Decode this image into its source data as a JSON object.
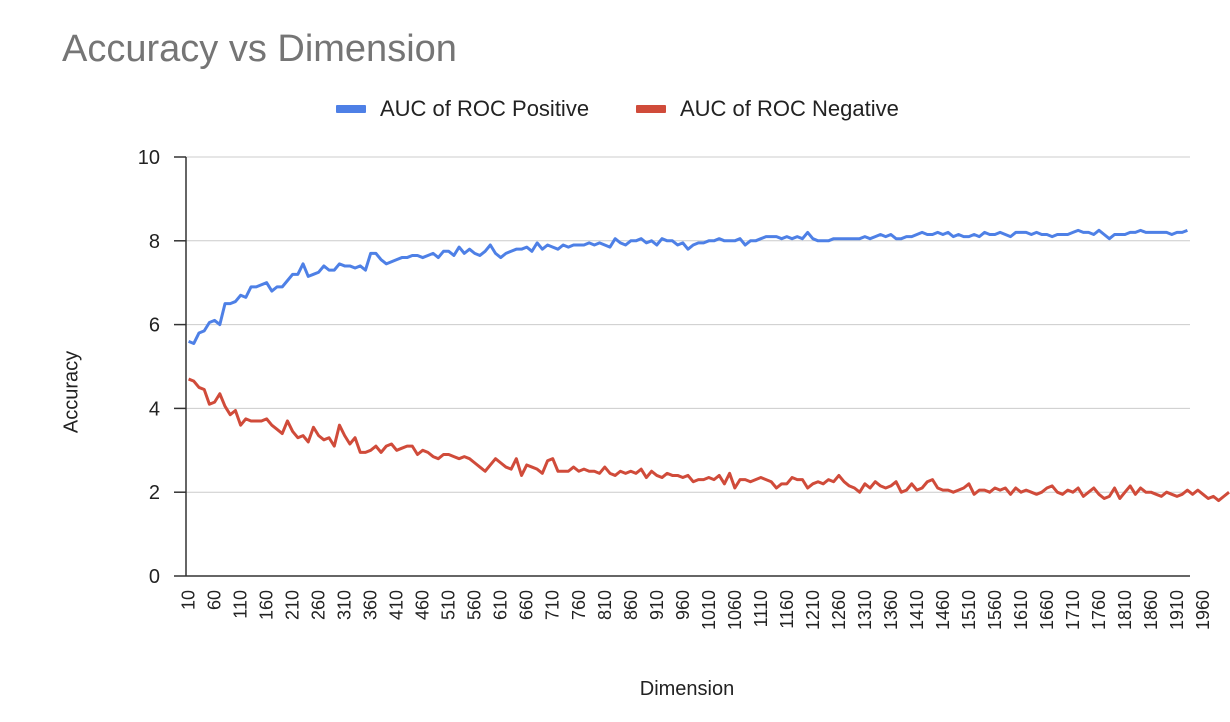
{
  "chart_data": {
    "type": "line",
    "title": "Accuracy vs Dimension",
    "xlabel": "Dimension",
    "ylabel": "Accuracy",
    "ylim": [
      0,
      10
    ],
    "yticks": [
      0,
      2,
      4,
      6,
      8,
      10
    ],
    "grid": true,
    "legend_position": "top",
    "x_start": 10,
    "x_step": 10,
    "x_tick_labels": [
      "10",
      "60",
      "110",
      "160",
      "210",
      "260",
      "310",
      "360",
      "410",
      "460",
      "510",
      "560",
      "610",
      "660",
      "710",
      "760",
      "810",
      "860",
      "910",
      "960",
      "1010",
      "1060",
      "1110",
      "1160",
      "1210",
      "1260",
      "1310",
      "1360",
      "1410",
      "1460",
      "1510",
      "1560",
      "1610",
      "1660",
      "1710",
      "1760",
      "1810",
      "1860",
      "1910",
      "1960"
    ],
    "series": [
      {
        "name": "AUC of ROC Positive",
        "color": "#4e80e6",
        "values": [
          5.6,
          5.55,
          5.8,
          5.85,
          6.05,
          6.1,
          6.0,
          6.5,
          6.5,
          6.55,
          6.7,
          6.65,
          6.9,
          6.9,
          6.95,
          7.0,
          6.8,
          6.9,
          6.9,
          7.05,
          7.2,
          7.2,
          7.45,
          7.15,
          7.2,
          7.25,
          7.4,
          7.3,
          7.3,
          7.45,
          7.4,
          7.4,
          7.35,
          7.4,
          7.3,
          7.7,
          7.7,
          7.55,
          7.45,
          7.5,
          7.55,
          7.6,
          7.6,
          7.65,
          7.65,
          7.6,
          7.65,
          7.7,
          7.6,
          7.75,
          7.75,
          7.65,
          7.85,
          7.7,
          7.8,
          7.7,
          7.65,
          7.75,
          7.9,
          7.7,
          7.6,
          7.7,
          7.75,
          7.8,
          7.8,
          7.85,
          7.75,
          7.95,
          7.8,
          7.9,
          7.85,
          7.8,
          7.9,
          7.85,
          7.9,
          7.9,
          7.9,
          7.95,
          7.9,
          7.95,
          7.9,
          7.85,
          8.05,
          7.95,
          7.9,
          8.0,
          8.0,
          8.05,
          7.95,
          8.0,
          7.9,
          8.05,
          8.0,
          8.0,
          7.9,
          7.95,
          7.8,
          7.9,
          7.95,
          7.95,
          8.0,
          8.0,
          8.05,
          8.0,
          8.0,
          8.0,
          8.05,
          7.9,
          8.0,
          8.0,
          8.05,
          8.1,
          8.1,
          8.1,
          8.05,
          8.1,
          8.05,
          8.1,
          8.05,
          8.2,
          8.05,
          8.0,
          8.0,
          8.0,
          8.05,
          8.05,
          8.05,
          8.05,
          8.05,
          8.05,
          8.1,
          8.05,
          8.1,
          8.15,
          8.1,
          8.15,
          8.05,
          8.05,
          8.1,
          8.1,
          8.15,
          8.2,
          8.15,
          8.15,
          8.2,
          8.15,
          8.2,
          8.1,
          8.15,
          8.1,
          8.1,
          8.15,
          8.1,
          8.2,
          8.15,
          8.15,
          8.2,
          8.15,
          8.1,
          8.2,
          8.2,
          8.2,
          8.15,
          8.2,
          8.15,
          8.15,
          8.1,
          8.15,
          8.15,
          8.15,
          8.2,
          8.25,
          8.2,
          8.2,
          8.15,
          8.25,
          8.15,
          8.05,
          8.15,
          8.15,
          8.15,
          8.2,
          8.2,
          8.25,
          8.2,
          8.2,
          8.2,
          8.2,
          8.2,
          8.15,
          8.2,
          8.2,
          8.25
        ]
      },
      {
        "name": "AUC of ROC Negative",
        "color": "#d04b3a",
        "values": [
          4.7,
          4.65,
          4.5,
          4.45,
          4.1,
          4.15,
          4.35,
          4.05,
          3.85,
          3.95,
          3.6,
          3.75,
          3.7,
          3.7,
          3.7,
          3.75,
          3.6,
          3.5,
          3.4,
          3.7,
          3.45,
          3.3,
          3.35,
          3.2,
          3.55,
          3.35,
          3.25,
          3.3,
          3.1,
          3.6,
          3.35,
          3.15,
          3.3,
          2.95,
          2.95,
          3.0,
          3.1,
          2.95,
          3.1,
          3.15,
          3.0,
          3.05,
          3.1,
          3.1,
          2.9,
          3.0,
          2.95,
          2.85,
          2.8,
          2.9,
          2.9,
          2.85,
          2.8,
          2.85,
          2.8,
          2.7,
          2.6,
          2.5,
          2.65,
          2.8,
          2.7,
          2.6,
          2.55,
          2.8,
          2.4,
          2.65,
          2.6,
          2.55,
          2.45,
          2.75,
          2.8,
          2.5,
          2.5,
          2.5,
          2.6,
          2.5,
          2.55,
          2.5,
          2.5,
          2.45,
          2.6,
          2.45,
          2.4,
          2.5,
          2.45,
          2.5,
          2.45,
          2.55,
          2.35,
          2.5,
          2.4,
          2.35,
          2.45,
          2.4,
          2.4,
          2.35,
          2.4,
          2.25,
          2.3,
          2.3,
          2.35,
          2.3,
          2.4,
          2.2,
          2.45,
          2.1,
          2.3,
          2.3,
          2.25,
          2.3,
          2.35,
          2.3,
          2.25,
          2.1,
          2.2,
          2.2,
          2.35,
          2.3,
          2.3,
          2.1,
          2.2,
          2.25,
          2.2,
          2.3,
          2.25,
          2.4,
          2.25,
          2.15,
          2.1,
          2.0,
          2.2,
          2.1,
          2.25,
          2.15,
          2.1,
          2.15,
          2.25,
          2.0,
          2.05,
          2.2,
          2.05,
          2.1,
          2.25,
          2.3,
          2.1,
          2.05,
          2.05,
          2.0,
          2.05,
          2.1,
          2.2,
          1.95,
          2.05,
          2.05,
          2.0,
          2.1,
          2.05,
          2.1,
          1.95,
          2.1,
          2.0,
          2.05,
          2.0,
          1.95,
          2.0,
          2.1,
          2.15,
          2.0,
          1.95,
          2.05,
          2.0,
          2.1,
          1.9,
          2.0,
          2.1,
          1.95,
          1.85,
          1.9,
          2.1,
          1.85,
          2.0,
          2.15,
          1.95,
          2.1,
          2.0,
          2.0,
          1.95,
          1.9,
          2.0,
          1.95,
          1.9,
          1.95,
          2.05,
          1.95,
          2.05,
          1.95,
          1.85,
          1.9,
          1.8,
          1.9,
          2.0
        ]
      }
    ]
  }
}
